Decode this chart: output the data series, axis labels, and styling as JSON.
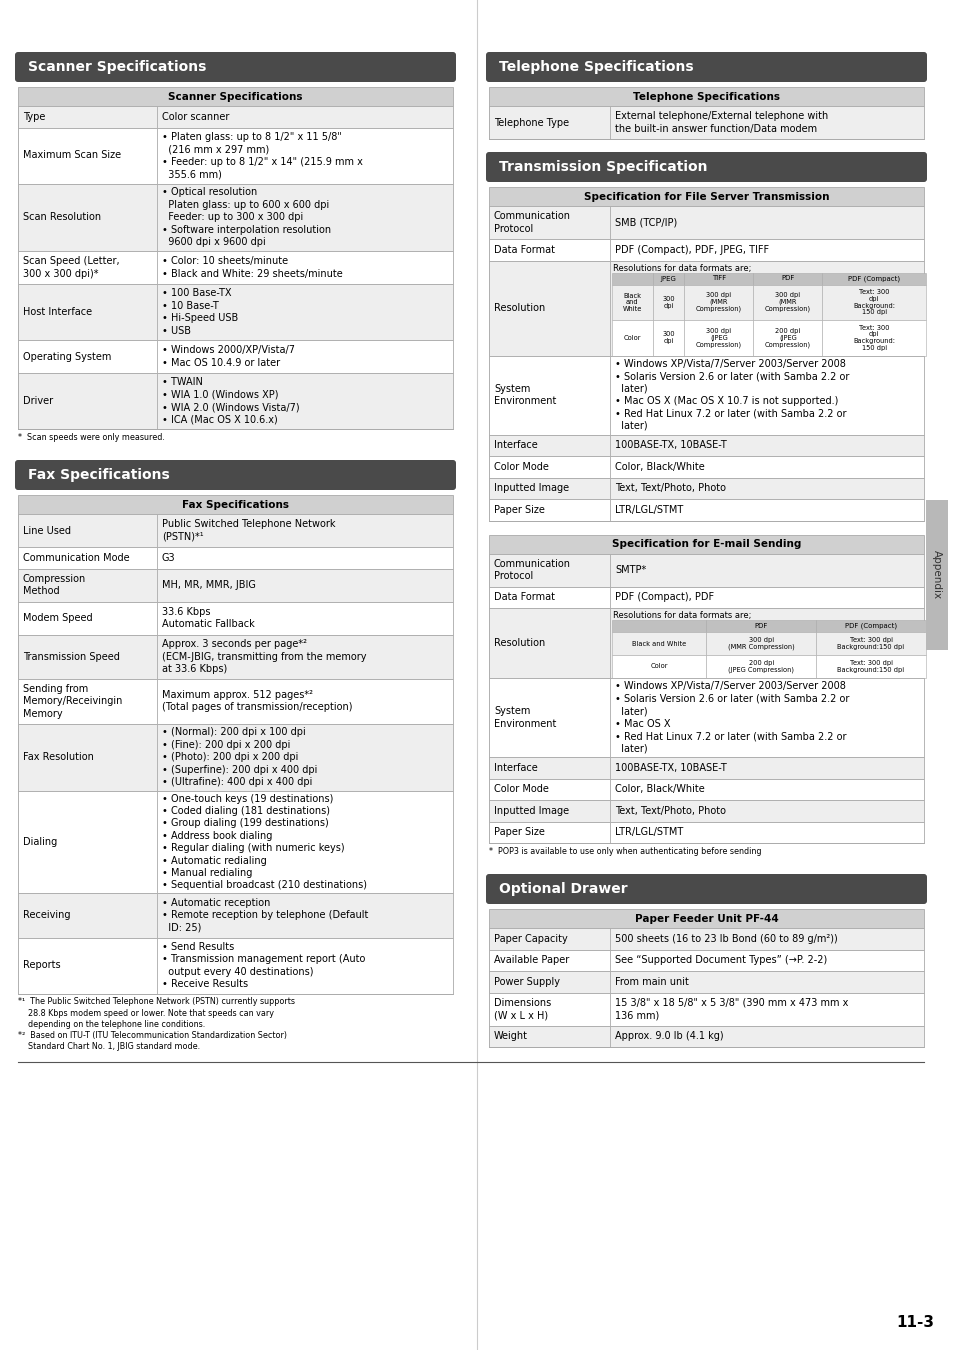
{
  "bg_color": "#ffffff",
  "header_bg": "#4a4a4a",
  "header_text_color": "#ffffff",
  "table_header_bg": "#d0d0d0",
  "row_alt_bg": "#eeeeee",
  "row_bg": "#ffffff",
  "border_color": "#aaaaaa",
  "text_color": "#000000",
  "page_number": "11-3",
  "appendix_label": "Appendix",
  "sidebar_bg": "#b0b0b0"
}
